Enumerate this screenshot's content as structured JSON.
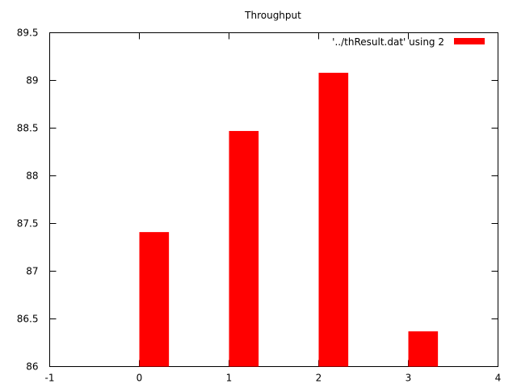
{
  "chart_data": {
    "type": "bar",
    "title": "Throughput",
    "xlabel": "",
    "ylabel": "",
    "x": [
      0,
      1,
      2,
      3
    ],
    "series": [
      {
        "name": "'../thResult.dat' using 2",
        "values": [
          87.41,
          88.47,
          89.08,
          86.37
        ]
      }
    ],
    "xlim": [
      -1,
      4
    ],
    "ylim": [
      86,
      89.5
    ],
    "xticks": [
      "-1",
      "0",
      "1",
      "2",
      "3",
      "4"
    ],
    "yticks": [
      "86",
      "86.5",
      "87",
      "87.5",
      "88",
      "88.5",
      "89",
      "89.5"
    ],
    "bar_width": 0.33,
    "grid": false,
    "legend_position": "top-right",
    "colors": {
      "bar": "#ff0000",
      "axis": "#000000",
      "background": "#ffffff"
    }
  }
}
